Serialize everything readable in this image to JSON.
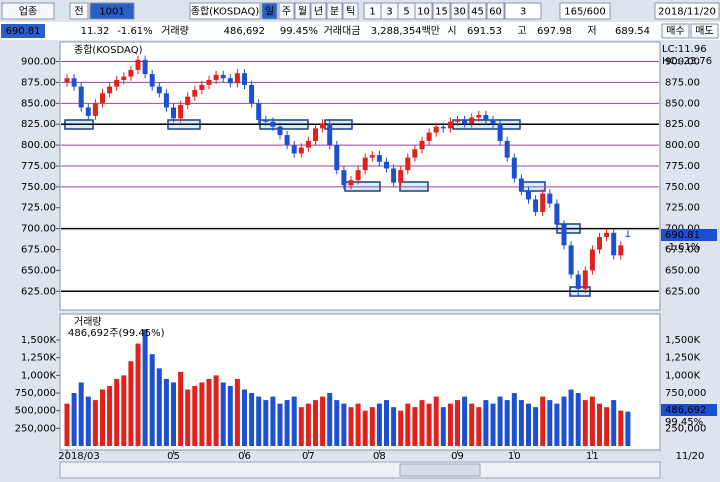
{
  "toolbar": {
    "market": "업종",
    "type": "전",
    "code": "1001",
    "name": "종합(KOSDAQ)",
    "periods": [
      "일",
      "주",
      "월",
      "년",
      "분",
      "틱"
    ],
    "intervals": [
      "1",
      "3",
      "5",
      "10",
      "15",
      "30",
      "45",
      "60"
    ],
    "count": "3",
    "range": "165/600",
    "date": "2018/11/20"
  },
  "info_bar": {
    "price": "690.81",
    "change": "11.32",
    "change_pct": "-1.61%",
    "volume_label": "거래량",
    "volume": "486,692",
    "volume_ratio": "99.45%",
    "amount_label": "거래대금",
    "amount": "3,288,354백만",
    "open_label": "시",
    "open": "691.53",
    "high_label": "고",
    "high": "697.98",
    "low_label": "저",
    "low": "689.54"
  },
  "side_buttons": [
    "매수",
    "매도"
  ],
  "chart_data": {
    "type": "candlestick",
    "title": "종합(KOSDAQ)",
    "lc_label": "LC:11.96",
    "hc_label": "HC:-23.76",
    "last_price_label": "690.81",
    "last_change_label": "-1.61%",
    "volume_title": "거래량",
    "volume_caption": "486,692주(99.45%)",
    "volume_last_label": "486,692",
    "volume_last_ratio": "99.45%",
    "x_end_label": "11/20",
    "up_color": "#e3211c",
    "down_color": "#1c4fd2",
    "categories": [
      "2018/03",
      null,
      null,
      null,
      null,
      null,
      null,
      null,
      null,
      null,
      null,
      null,
      null,
      null,
      null,
      "05",
      null,
      null,
      null,
      null,
      null,
      null,
      null,
      null,
      null,
      "06",
      null,
      null,
      null,
      null,
      null,
      null,
      null,
      null,
      "07",
      null,
      null,
      null,
      null,
      null,
      null,
      null,
      null,
      null,
      "08",
      null,
      null,
      null,
      null,
      null,
      null,
      null,
      null,
      null,
      null,
      "09",
      null,
      null,
      null,
      null,
      null,
      null,
      null,
      "10",
      null,
      null,
      null,
      null,
      null,
      null,
      null,
      null,
      null,
      null,
      "11",
      null,
      null,
      null,
      null,
      null
    ],
    "open": [
      875,
      880,
      870,
      845,
      835,
      850,
      862,
      870,
      878,
      882,
      890,
      902,
      885,
      870,
      862,
      845,
      832,
      848,
      858,
      866,
      872,
      878,
      884,
      880,
      874,
      886,
      872,
      850,
      830,
      828,
      822,
      812,
      800,
      790,
      797,
      805,
      820,
      826,
      800,
      770,
      752,
      758,
      770,
      785,
      788,
      780,
      772,
      755,
      770,
      785,
      795,
      805,
      815,
      822,
      820,
      828,
      830,
      826,
      833,
      836,
      830,
      825,
      805,
      785,
      760,
      745,
      735,
      720,
      742,
      730,
      705,
      680,
      645,
      628,
      650,
      675,
      690,
      695,
      668,
      691.53
    ],
    "high": [
      885,
      885,
      875,
      850,
      855,
      867,
      875,
      883,
      887,
      895,
      907,
      907,
      890,
      875,
      867,
      850,
      853,
      863,
      871,
      877,
      883,
      889,
      889,
      885,
      891,
      891,
      877,
      855,
      835,
      833,
      827,
      817,
      805,
      802,
      810,
      825,
      831,
      831,
      805,
      775,
      763,
      775,
      790,
      793,
      793,
      785,
      777,
      775,
      790,
      800,
      810,
      820,
      827,
      827,
      833,
      835,
      835,
      838,
      841,
      841,
      835,
      830,
      810,
      790,
      765,
      750,
      740,
      747,
      747,
      735,
      710,
      685,
      650,
      655,
      680,
      695,
      700,
      700,
      685,
      697.98
    ],
    "low": [
      870,
      865,
      840,
      830,
      830,
      845,
      857,
      865,
      873,
      877,
      885,
      880,
      865,
      857,
      840,
      827,
      827,
      843,
      853,
      861,
      867,
      873,
      875,
      869,
      869,
      867,
      845,
      825,
      823,
      817,
      807,
      795,
      785,
      785,
      792,
      800,
      815,
      795,
      765,
      747,
      747,
      753,
      765,
      780,
      775,
      767,
      750,
      750,
      765,
      780,
      790,
      800,
      810,
      815,
      815,
      823,
      821,
      821,
      828,
      825,
      820,
      800,
      780,
      755,
      740,
      730,
      715,
      715,
      725,
      700,
      675,
      640,
      620,
      623,
      645,
      670,
      685,
      663,
      663,
      689.54
    ],
    "close": [
      880,
      870,
      845,
      835,
      850,
      862,
      870,
      878,
      882,
      890,
      902,
      885,
      870,
      862,
      845,
      832,
      848,
      858,
      866,
      872,
      878,
      884,
      880,
      874,
      886,
      872,
      850,
      830,
      828,
      822,
      812,
      800,
      790,
      797,
      805,
      820,
      826,
      800,
      770,
      752,
      758,
      770,
      785,
      788,
      780,
      772,
      755,
      770,
      785,
      795,
      805,
      815,
      822,
      820,
      828,
      830,
      826,
      833,
      836,
      830,
      825,
      805,
      785,
      760,
      745,
      735,
      720,
      742,
      730,
      705,
      680,
      645,
      628,
      650,
      675,
      690,
      695,
      668,
      680,
      690.81
    ],
    "volume": [
      600000,
      750000,
      900000,
      700000,
      650000,
      800000,
      850000,
      950000,
      1000000,
      1200000,
      1450000,
      1650000,
      1300000,
      1100000,
      950000,
      900000,
      1050000,
      800000,
      850000,
      900000,
      950000,
      1000000,
      900000,
      850000,
      950000,
      800000,
      750000,
      700000,
      650000,
      700000,
      600000,
      650000,
      700000,
      550000,
      600000,
      650000,
      700000,
      750000,
      650000,
      600000,
      550000,
      600000,
      500000,
      550000,
      600000,
      650000,
      550000,
      500000,
      600000,
      550000,
      650000,
      600000,
      700000,
      550000,
      600000,
      650000,
      700000,
      600000,
      550000,
      650000,
      600000,
      700000,
      650000,
      750000,
      650000,
      600000,
      550000,
      700000,
      650000,
      600000,
      700000,
      800000,
      750000,
      650000,
      700000,
      600000,
      550000,
      650000,
      500000,
      486692
    ],
    "ylim": [
      605,
      921
    ],
    "yticks": [
      {
        "value": 625,
        "label": "625.00"
      },
      {
        "value": 650,
        "label": "650.00"
      },
      {
        "value": 675,
        "label": "675.00"
      },
      {
        "value": 700,
        "label": "700.00"
      },
      {
        "value": 725,
        "label": "725.00"
      },
      {
        "value": 750,
        "label": "750.00"
      },
      {
        "value": 775,
        "label": "775.00"
      },
      {
        "value": 800,
        "label": "800.00"
      },
      {
        "value": 825,
        "label": "825.00"
      },
      {
        "value": 850,
        "label": "850.00"
      },
      {
        "value": 875,
        "label": "875.00"
      },
      {
        "value": 900,
        "label": "900.00"
      }
    ],
    "reference_lines": [
      {
        "value": 900,
        "color": "#a23fa8"
      },
      {
        "value": 875,
        "color": "#a23fa8"
      },
      {
        "value": 850,
        "color": "#a23fa8"
      },
      {
        "value": 825,
        "color": "#000000"
      },
      {
        "value": 800,
        "color": "#a23fa8"
      },
      {
        "value": 775,
        "color": "#a23fa8"
      },
      {
        "value": 750,
        "color": "#a23fa8"
      },
      {
        "value": 700,
        "color": "#000000"
      },
      {
        "value": 625,
        "color": "#000000"
      }
    ],
    "volume_ylim": [
      0,
      1812500
    ],
    "volume_yticks": [
      {
        "value": 250000,
        "label": "250,000"
      },
      {
        "value": 500000,
        "label": "500,000"
      },
      {
        "value": 750000,
        "label": "750,000"
      },
      {
        "value": 1000000,
        "label": "1,000K"
      },
      {
        "value": 1250000,
        "label": "1,250K"
      },
      {
        "value": 1500000,
        "label": "1,500K"
      }
    ]
  }
}
